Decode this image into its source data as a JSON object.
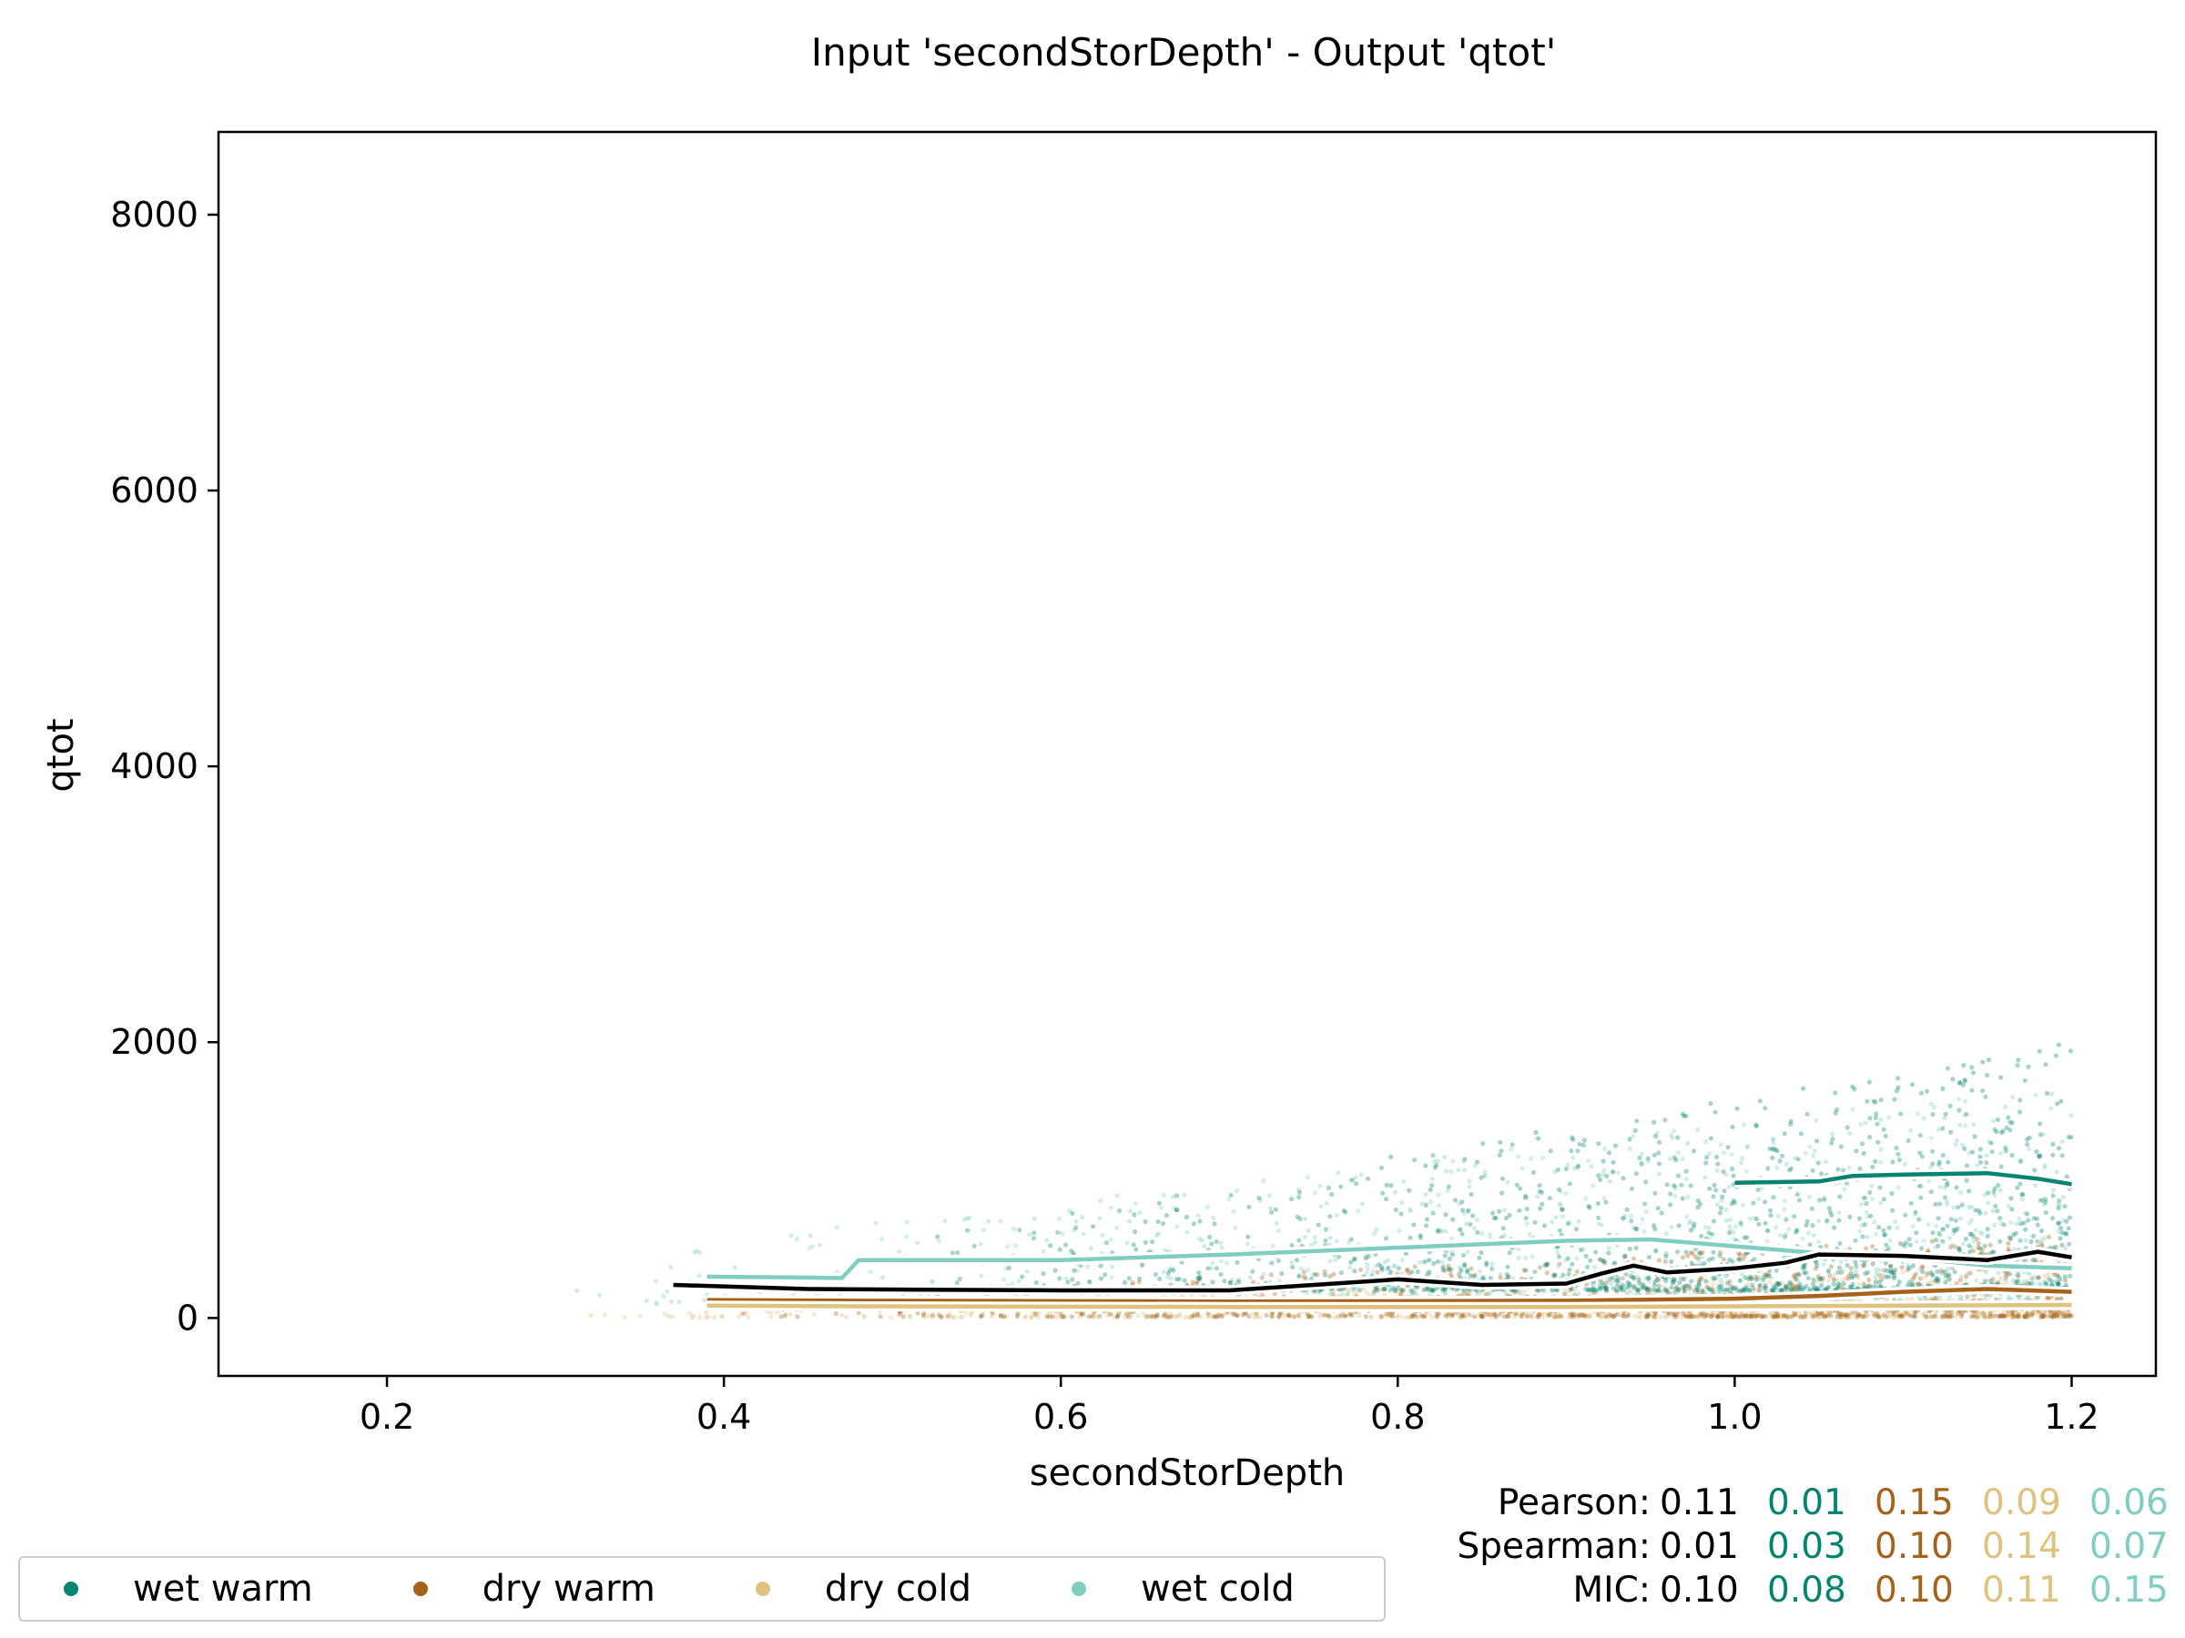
{
  "chart_data": {
    "type": "scatter",
    "title": "Input 'secondStorDepth' - Output 'qtot'",
    "xlabel": "secondStorDepth",
    "ylabel": "qtot",
    "xlim": [
      0.1,
      1.25
    ],
    "ylim": [
      -420,
      8600
    ],
    "xticks": [
      0.2,
      0.4,
      0.6,
      0.8,
      1.0,
      1.2
    ],
    "xtick_labels": [
      "0.2",
      "0.4",
      "0.6",
      "0.8",
      "1.0",
      "1.2"
    ],
    "yticks": [
      0,
      2000,
      4000,
      6000,
      8000
    ],
    "ytick_labels": [
      "0",
      "2000",
      "4000",
      "6000",
      "8000"
    ],
    "grid": false,
    "legend_position": "bottom-left",
    "series": [
      {
        "name": "wet warm",
        "color": "#018571",
        "cloud": {
          "xmin": 0.5,
          "xmax": 1.2,
          "base": 200,
          "spread": 900,
          "count": 1400
        },
        "trend": [
          [
            1.0,
            980
          ],
          [
            1.05,
            990
          ],
          [
            1.07,
            1030
          ],
          [
            1.1,
            1040
          ],
          [
            1.15,
            1050
          ],
          [
            1.18,
            1010
          ],
          [
            1.2,
            970
          ]
        ]
      },
      {
        "name": "dry warm",
        "color": "#a6611a",
        "cloud": {
          "xmin": 0.4,
          "xmax": 1.2,
          "base": 10,
          "spread": 300,
          "count": 1100
        },
        "trend": [
          [
            0.39,
            130
          ],
          [
            0.48,
            125
          ],
          [
            0.7,
            120
          ],
          [
            0.9,
            125
          ],
          [
            1.0,
            140
          ],
          [
            1.05,
            160
          ],
          [
            1.1,
            190
          ],
          [
            1.15,
            210
          ],
          [
            1.2,
            190
          ]
        ]
      },
      {
        "name": "dry cold",
        "color": "#dfc27d",
        "cloud": {
          "xmin": 0.28,
          "xmax": 1.2,
          "base": 5,
          "spread": 180,
          "count": 900
        },
        "trend": [
          [
            0.39,
            90
          ],
          [
            0.48,
            85
          ],
          [
            0.7,
            80
          ],
          [
            0.9,
            80
          ],
          [
            1.0,
            85
          ],
          [
            1.1,
            90
          ],
          [
            1.2,
            95
          ]
        ]
      },
      {
        "name": "wet cold",
        "color": "#80cdc1",
        "cloud": {
          "xmin": 0.3,
          "xmax": 1.2,
          "base": 100,
          "spread": 800,
          "count": 1300
        },
        "trend": [
          [
            0.39,
            300
          ],
          [
            0.47,
            290
          ],
          [
            0.48,
            420
          ],
          [
            0.6,
            420
          ],
          [
            0.7,
            460
          ],
          [
            0.8,
            510
          ],
          [
            0.9,
            560
          ],
          [
            0.95,
            570
          ],
          [
            1.0,
            520
          ],
          [
            1.05,
            470
          ],
          [
            1.1,
            440
          ],
          [
            1.15,
            380
          ],
          [
            1.2,
            360
          ]
        ]
      }
    ],
    "overall_trend": {
      "color": "#000000",
      "points": [
        [
          0.37,
          240
        ],
        [
          0.45,
          210
        ],
        [
          0.6,
          200
        ],
        [
          0.7,
          200
        ],
        [
          0.75,
          240
        ],
        [
          0.8,
          280
        ],
        [
          0.85,
          240
        ],
        [
          0.9,
          250
        ],
        [
          0.92,
          320
        ],
        [
          0.94,
          380
        ],
        [
          0.96,
          330
        ],
        [
          1.0,
          360
        ],
        [
          1.03,
          400
        ],
        [
          1.05,
          460
        ],
        [
          1.1,
          450
        ],
        [
          1.15,
          420
        ],
        [
          1.18,
          480
        ],
        [
          1.2,
          440
        ]
      ]
    },
    "stats": {
      "labels": [
        "Pearson:",
        "Spearman:",
        "MIC:"
      ],
      "columns_colors": [
        "#000000",
        "#018571",
        "#a6611a",
        "#dfc27d",
        "#80cdc1"
      ],
      "rows": [
        [
          "0.11",
          "0.01",
          "0.15",
          "0.09",
          "0.06"
        ],
        [
          "0.01",
          "0.03",
          "0.10",
          "0.14",
          "0.07"
        ],
        [
          "0.10",
          "0.08",
          "0.10",
          "0.11",
          "0.15"
        ]
      ]
    }
  }
}
